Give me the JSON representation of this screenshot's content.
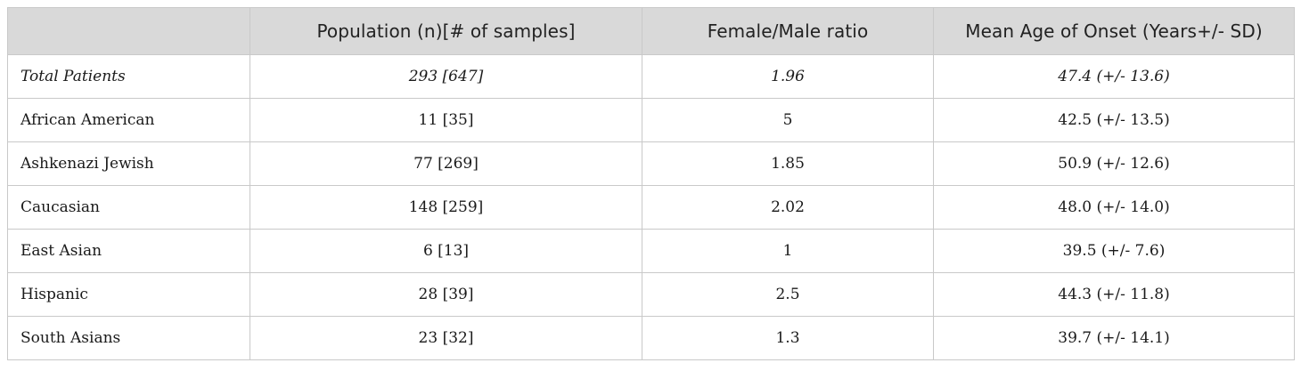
{
  "table": {
    "headers": [
      "",
      "Population (n)[# of samples]",
      "Female/Male ratio",
      "Mean Age of Onset (Years+/- SD)"
    ],
    "rows": [
      [
        "Total Patients",
        "293 [647]",
        "1.96",
        "47.4 (+/- 13.6)"
      ],
      [
        "African American",
        "11 [35]",
        "5",
        "42.5 (+/- 13.5)"
      ],
      [
        "Ashkenazi Jewish",
        "77 [269]",
        "1.85",
        "50.9 (+/- 12.6)"
      ],
      [
        "Caucasian",
        "148 [259]",
        "2.02",
        "48.0 (+/- 14.0)"
      ],
      [
        "East Asian",
        "6 [13]",
        "1",
        "39.5 (+/- 7.6)"
      ],
      [
        "Hispanic",
        "28 [39]",
        "2.5",
        "44.3 (+/- 11.8)"
      ],
      [
        "South Asians",
        "23 [32]",
        "1.3",
        "39.7 (+/- 14.1)"
      ]
    ]
  }
}
